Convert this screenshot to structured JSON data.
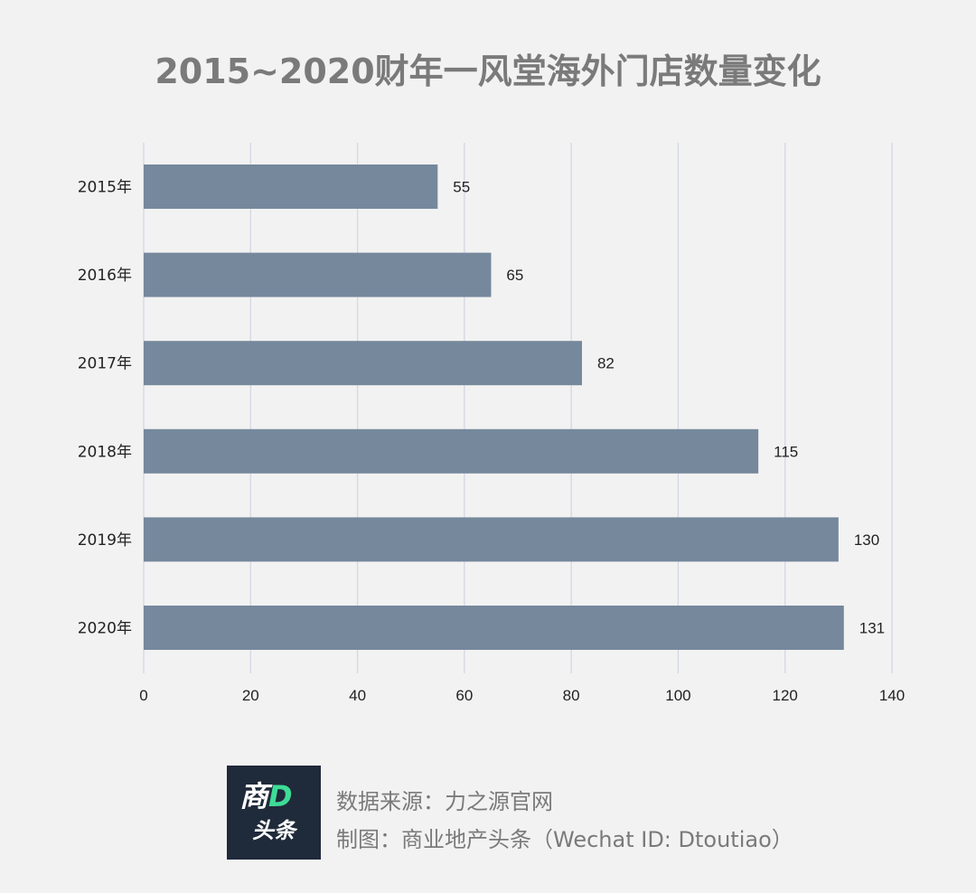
{
  "chart_data": {
    "type": "bar",
    "orientation": "horizontal",
    "title": "2015~2020财年一风堂海外门店数量变化",
    "categories": [
      "2015年",
      "2016年",
      "2017年",
      "2018年",
      "2019年",
      "2020年"
    ],
    "values": [
      55,
      65,
      82,
      115,
      130,
      131
    ],
    "xlim": [
      0,
      140
    ],
    "xticks": [
      0,
      20,
      40,
      60,
      80,
      100,
      120,
      140
    ],
    "grid": "vertical",
    "legend": "none",
    "bar_color": "#75889c",
    "grid_color": "#d4d7e6"
  },
  "footer": {
    "logo_top": "商",
    "logo_d": "D",
    "logo_bottom": "头条",
    "source": "数据来源：力之源官网",
    "credit": "制图：商业地产头条（Wechat ID: Dtoutiao）"
  }
}
